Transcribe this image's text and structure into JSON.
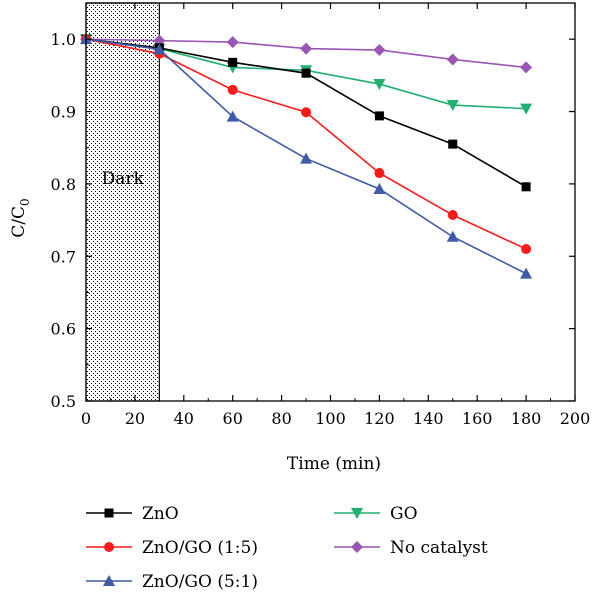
{
  "chart_data": {
    "type": "line",
    "xlabel": "Time (min)",
    "ylabel_main": "C/C",
    "ylabel_sub": "0",
    "xlim": [
      0,
      200
    ],
    "ylim": [
      0.5,
      1.05
    ],
    "xticks": [
      "0",
      "20",
      "40",
      "60",
      "80",
      "100",
      "120",
      "140",
      "160",
      "180",
      "200"
    ],
    "yticks": [
      "0.5",
      "0.6",
      "0.7",
      "0.8",
      "0.9",
      "1.0"
    ],
    "dark_region": {
      "label": "Dark",
      "x_start": 0,
      "x_end": 30
    },
    "x": [
      0,
      30,
      60,
      90,
      120,
      150,
      180
    ],
    "series": [
      {
        "name": "ZnO",
        "marker": "square",
        "color": "#000000",
        "values": [
          1.0,
          0.988,
          0.968,
          0.953,
          0.894,
          0.855,
          0.796
        ]
      },
      {
        "name": "ZnO/GO (1:5)",
        "marker": "circle",
        "color": "#ff1a1a",
        "values": [
          1.0,
          0.98,
          0.93,
          0.899,
          0.815,
          0.757,
          0.71
        ]
      },
      {
        "name": "ZnO/GO (5:1)",
        "marker": "triangle-up",
        "color": "#3f5aa9",
        "values": [
          1.0,
          0.986,
          0.893,
          0.835,
          0.793,
          0.727,
          0.676
        ]
      },
      {
        "name": "GO",
        "marker": "triangle-down",
        "color": "#20b070",
        "values": [
          1.0,
          0.987,
          0.961,
          0.957,
          0.938,
          0.909,
          0.904
        ]
      },
      {
        "name": "No catalyst",
        "marker": "diamond",
        "color": "#9a55b5",
        "values": [
          1.0,
          0.998,
          0.996,
          0.987,
          0.985,
          0.972,
          0.961
        ]
      }
    ],
    "legend_placement": "bottom, two columns"
  }
}
